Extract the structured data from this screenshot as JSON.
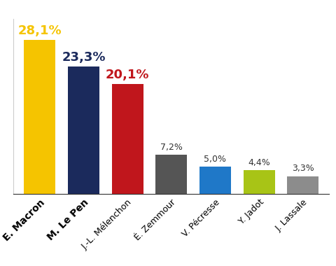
{
  "chart_data": {
    "type": "bar",
    "categories": [
      "E. Macron",
      "M. Le Pen",
      "J.-L. Mélenchon",
      "É. Zemmour",
      "V. Pécresse",
      "Y. Jadot",
      "J. Lassale"
    ],
    "values": [
      28.1,
      23.3,
      20.1,
      7.2,
      5.0,
      4.4,
      3.3
    ],
    "value_labels": [
      "28,1%",
      "23,3%",
      "20,1%",
      "7,2%",
      "5,0%",
      "4,4%",
      "3,3%"
    ],
    "colors": [
      "#f5c400",
      "#1b2a5c",
      "#c0161c",
      "#555555",
      "#1f78c8",
      "#a8c416",
      "#8c8c8c"
    ],
    "ylim": [
      0,
      32
    ],
    "yticks": [],
    "data_labels": true,
    "tick_labels": "x",
    "grid": false
  }
}
